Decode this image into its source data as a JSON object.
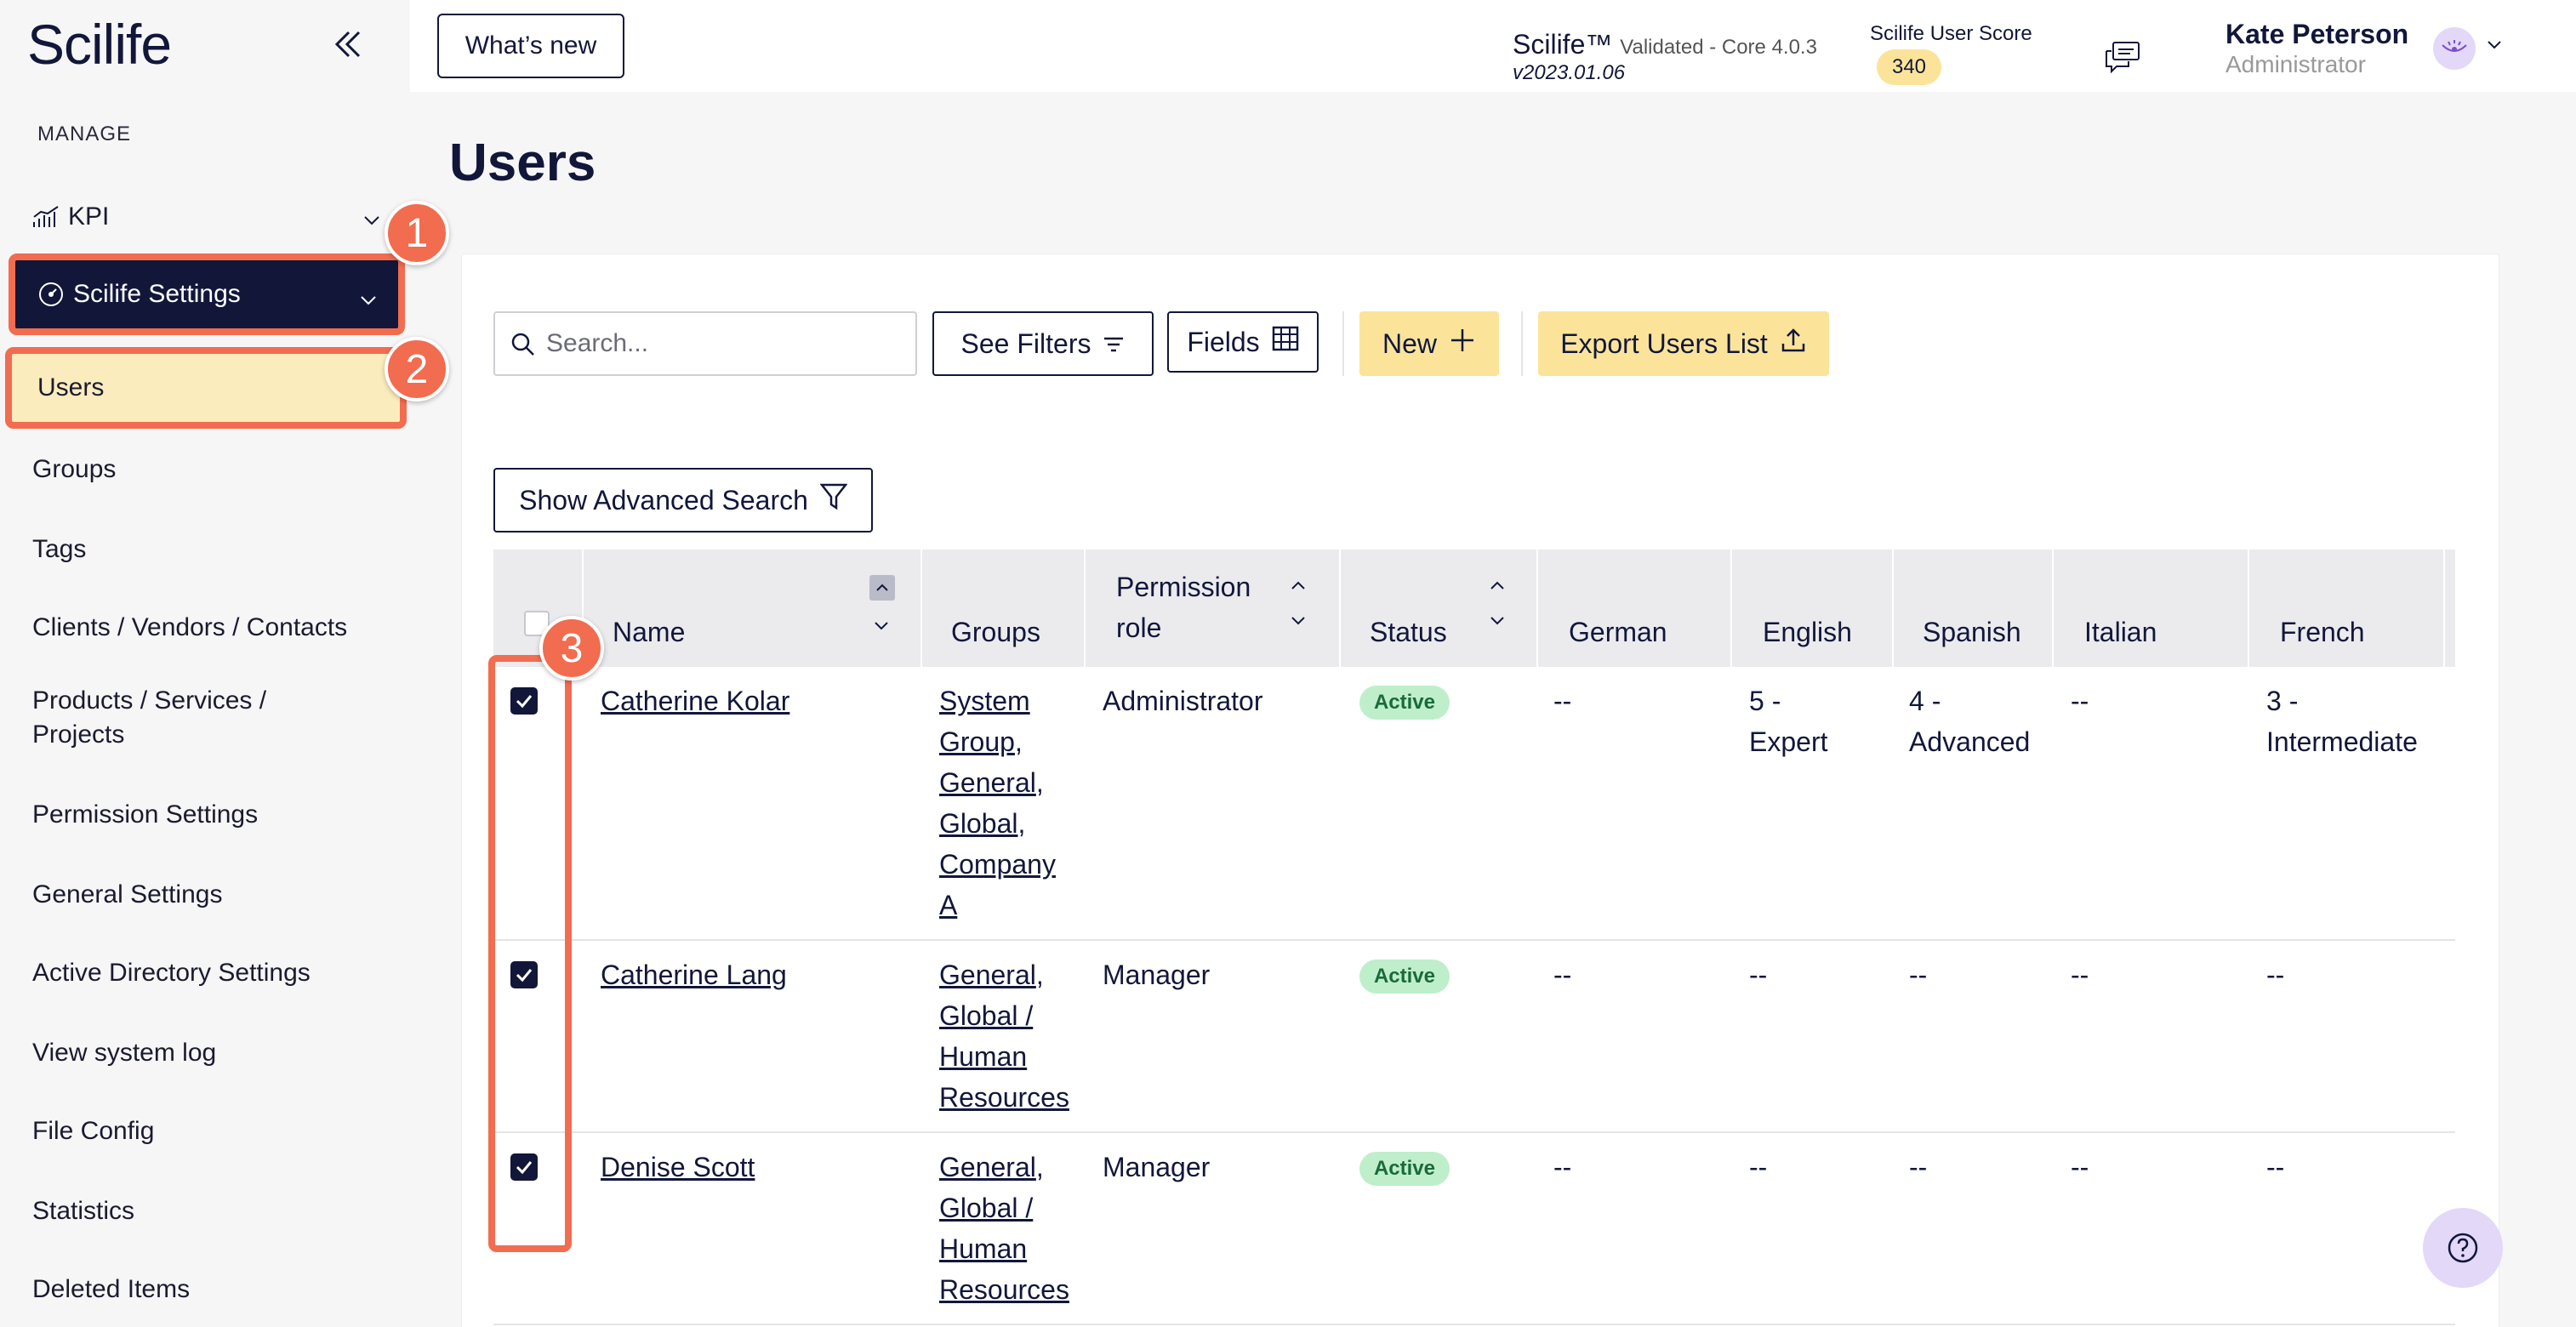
{
  "brand": {
    "logo": "Scilife",
    "name": "Scilife™",
    "validated": "Validated - Core 4.0.3",
    "version": "v2023.01.06"
  },
  "header": {
    "whats_new": "What’s new",
    "score_label": "Scilife User Score",
    "score_value": "340",
    "user_name": "Kate Peterson",
    "user_role": "Administrator"
  },
  "sidebar": {
    "section": "MANAGE",
    "kpi": "KPI",
    "settings": "Scilife Settings",
    "items": [
      "Users",
      "Groups",
      "Tags",
      "Clients / Vendors / Contacts",
      "Products / Services / Projects",
      "Permission Settings",
      "General Settings",
      "Active Directory Settings",
      "View system log",
      "File Config",
      "Statistics",
      "Deleted Items"
    ]
  },
  "main": {
    "title": "Users",
    "search_placeholder": "Search...",
    "see_filters": "See Filters",
    "fields": "Fields",
    "new": "New",
    "export": "Export Users List",
    "advanced_search": "Show Advanced Search"
  },
  "table": {
    "columns": [
      "Name",
      "Groups",
      "Permission role",
      "Status",
      "German",
      "English",
      "Spanish",
      "Italian",
      "French"
    ],
    "rows": [
      {
        "name": "Catherine Kolar",
        "groups": [
          "System Group",
          "General",
          "Global",
          "Company A"
        ],
        "role": "Administrator",
        "status": "Active",
        "german": "--",
        "english": "5 - Expert",
        "spanish": "4 - Advanced",
        "italian": "--",
        "french": "3 - Intermediate",
        "checked": true
      },
      {
        "name": "Catherine Lang",
        "groups": [
          "General",
          "Global / Human Resources"
        ],
        "role": "Manager",
        "status": "Active",
        "german": "--",
        "english": "--",
        "spanish": "--",
        "italian": "--",
        "french": "--",
        "checked": true
      },
      {
        "name": "Denise Scott",
        "groups": [
          "General",
          "Global / Human Resources"
        ],
        "role": "Manager",
        "status": "Active",
        "german": "--",
        "english": "--",
        "spanish": "--",
        "italian": "--",
        "french": "--",
        "checked": true
      }
    ]
  },
  "callouts": [
    "1",
    "2",
    "3"
  ],
  "colors": {
    "navy": "#12173a",
    "accent": "#f26c4f",
    "highlight": "#fbecbe",
    "yellow": "#fbe49a",
    "active_bg": "#bfeecb"
  },
  "icons": [
    "collapse-sidebar-icon",
    "kpi-chart-icon",
    "settings-gauge-icon",
    "chevron-down-icon",
    "search-icon",
    "filter-lines-icon",
    "table-grid-icon",
    "plus-icon",
    "upload-icon",
    "funnel-icon",
    "chat-icon",
    "avatar-eye-icon",
    "help-icon",
    "checkbox-check-icon"
  ]
}
